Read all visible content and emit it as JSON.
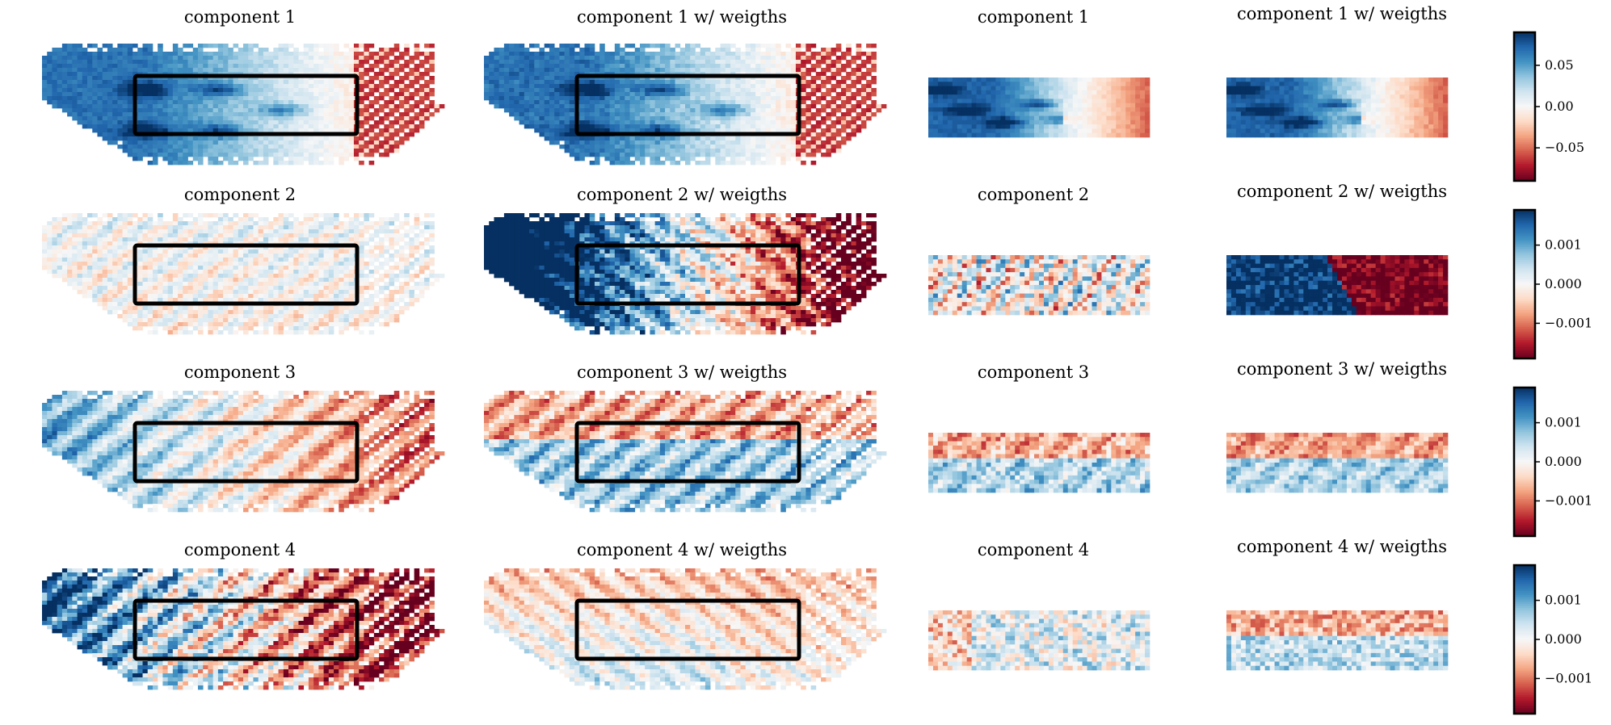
{
  "figure": {
    "colormap": "RdBu",
    "colormap_stops": [
      "#67001f",
      "#b2182b",
      "#d6604d",
      "#f4a582",
      "#fddbc7",
      "#f7f7f7",
      "#d1e5f0",
      "#92c5de",
      "#4393c3",
      "#2166ac",
      "#053061"
    ],
    "roi_box_color": "#000000"
  },
  "chart_data": [
    {
      "type": "heatmap",
      "component": 1,
      "row": 0,
      "title": "component 1",
      "view": "full",
      "pattern": "c1",
      "box": true,
      "colorbar": {
        "ticks": [
          0.05,
          0.0,
          -0.05
        ],
        "tick_labels": [
          "0.05",
          "0.00",
          "−0.05"
        ],
        "vmin": -0.09,
        "vmax": 0.09
      }
    },
    {
      "type": "heatmap",
      "component": 1,
      "row": 0,
      "title": "component 1 w/ weigths",
      "view": "full",
      "pattern": "c1w",
      "box": true
    },
    {
      "type": "heatmap",
      "component": 1,
      "row": 0,
      "title": "component 1",
      "view": "crop",
      "pattern": "c1"
    },
    {
      "type": "heatmap",
      "component": 1,
      "row": 0,
      "title": "component 1 w/ weigths",
      "view": "crop",
      "pattern": "c1w"
    },
    {
      "type": "heatmap",
      "component": 2,
      "row": 1,
      "title": "component 2",
      "view": "full",
      "pattern": "c2",
      "box": true,
      "colorbar": {
        "ticks": [
          0.001,
          0.0,
          -0.001
        ],
        "tick_labels": [
          "0.001",
          "0.000",
          "−0.001"
        ],
        "vmin": -0.0019,
        "vmax": 0.0019
      }
    },
    {
      "type": "heatmap",
      "component": 2,
      "row": 1,
      "title": "component 2 w/ weigths",
      "view": "full",
      "pattern": "c2w",
      "box": true
    },
    {
      "type": "heatmap",
      "component": 2,
      "row": 1,
      "title": "component 2",
      "view": "crop",
      "pattern": "c2"
    },
    {
      "type": "heatmap",
      "component": 2,
      "row": 1,
      "title": "component 2 w/ weigths",
      "view": "crop",
      "pattern": "c2w"
    },
    {
      "type": "heatmap",
      "component": 3,
      "row": 2,
      "title": "component 3",
      "view": "full",
      "pattern": "c3",
      "box": true,
      "colorbar": {
        "ticks": [
          0.001,
          0.0,
          -0.001
        ],
        "tick_labels": [
          "0.001",
          "0.000",
          "−0.001"
        ],
        "vmin": -0.0019,
        "vmax": 0.0019
      }
    },
    {
      "type": "heatmap",
      "component": 3,
      "row": 2,
      "title": "component 3 w/ weigths",
      "view": "full",
      "pattern": "c3w",
      "box": true
    },
    {
      "type": "heatmap",
      "component": 3,
      "row": 2,
      "title": "component 3",
      "view": "crop",
      "pattern": "c3"
    },
    {
      "type": "heatmap",
      "component": 3,
      "row": 2,
      "title": "component 3 w/ weigths",
      "view": "crop",
      "pattern": "c3w"
    },
    {
      "type": "heatmap",
      "component": 4,
      "row": 3,
      "title": "component 4",
      "view": "full",
      "pattern": "c4",
      "box": true,
      "colorbar": {
        "ticks": [
          0.001,
          0.0,
          -0.001
        ],
        "tick_labels": [
          "0.001",
          "0.000",
          "−0.001"
        ],
        "vmin": -0.0019,
        "vmax": 0.0019
      }
    },
    {
      "type": "heatmap",
      "component": 4,
      "row": 3,
      "title": "component 4 w/ weigths",
      "view": "full",
      "pattern": "c4w",
      "box": true
    },
    {
      "type": "heatmap",
      "component": 4,
      "row": 3,
      "title": "component 4",
      "view": "crop",
      "pattern": "c4"
    },
    {
      "type": "heatmap",
      "component": 4,
      "row": 3,
      "title": "component 4 w/ weigths",
      "view": "crop",
      "pattern": "c4w"
    }
  ]
}
